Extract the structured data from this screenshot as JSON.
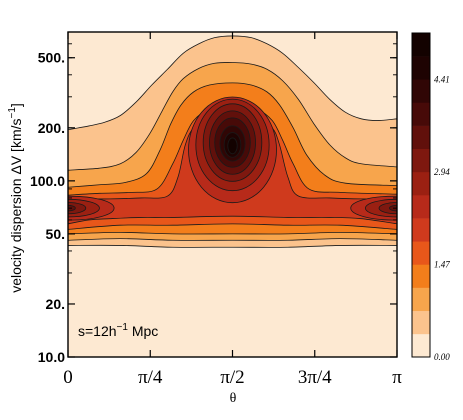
{
  "chart_data": {
    "type": "contour",
    "xlabel": "θ",
    "ylabel": "velocity dispersion ΔV [km/s",
    "ylabel_sup": "−1",
    "ylabel_end": "]",
    "x_range": [
      0,
      3.14159
    ],
    "x_ticks": [
      {
        "value": 0,
        "label": "0"
      },
      {
        "value": 0.7854,
        "label": "π/4"
      },
      {
        "value": 1.5708,
        "label": "π/2"
      },
      {
        "value": 2.3562,
        "label": "3π/4"
      },
      {
        "value": 3.14159,
        "label": "π"
      }
    ],
    "y_scale": "log",
    "y_range": [
      10,
      700
    ],
    "y_ticks": [
      {
        "value": 10,
        "label": "10.0"
      },
      {
        "value": 20,
        "label": "20."
      },
      {
        "value": 50,
        "label": "50."
      },
      {
        "value": 100,
        "label": "100.0"
      },
      {
        "value": 200,
        "label": "200."
      },
      {
        "value": 500,
        "label": "500."
      }
    ],
    "annotation": {
      "main": "s=12h",
      "sup": "−1",
      "tail": " Mpc"
    },
    "colorbar": {
      "range": [
        0,
        5.15
      ],
      "ticks": [
        {
          "value": 0.0,
          "label": "0.00"
        },
        {
          "value": 1.47,
          "label": "1.47"
        },
        {
          "value": 2.94,
          "label": "2.94"
        },
        {
          "value": 4.41,
          "label": "4.41"
        }
      ],
      "colors": [
        "#fde9d2",
        "#fbc38d",
        "#f7a54c",
        "#f37e1b",
        "#e8571a",
        "#cf3a1d",
        "#b72a1a",
        "#9b2012",
        "#7e180f",
        "#61100b",
        "#470a08",
        "#300605",
        "#1e0302",
        "#130200"
      ]
    },
    "levels": [
      {
        "level": 1,
        "upper": [
          [
            0,
            195
          ],
          [
            0.2,
            205
          ],
          [
            0.35,
            215
          ],
          [
            0.5,
            235
          ],
          [
            0.65,
            280
          ],
          [
            0.8,
            350
          ],
          [
            0.95,
            430
          ],
          [
            1.1,
            530
          ],
          [
            1.25,
            600
          ],
          [
            1.4,
            650
          ],
          [
            1.5708,
            665
          ],
          [
            1.75,
            650
          ],
          [
            1.9,
            600
          ],
          [
            2.05,
            530
          ],
          [
            2.2,
            440
          ],
          [
            2.35,
            360
          ],
          [
            2.5,
            290
          ],
          [
            2.65,
            245
          ],
          [
            2.8,
            225
          ],
          [
            2.95,
            220
          ],
          [
            3.14159,
            225
          ]
        ],
        "lower": [
          [
            0,
            43
          ],
          [
            0.5,
            43
          ],
          [
            1.0,
            42
          ],
          [
            1.5708,
            42
          ],
          [
            2.1,
            42
          ],
          [
            2.6,
            43
          ],
          [
            3.14159,
            43
          ]
        ]
      },
      {
        "level": 2,
        "upper": [
          [
            0,
            115
          ],
          [
            0.3,
            118
          ],
          [
            0.5,
            125
          ],
          [
            0.65,
            145
          ],
          [
            0.78,
            185
          ],
          [
            0.9,
            250
          ],
          [
            1.0,
            320
          ],
          [
            1.1,
            380
          ],
          [
            1.25,
            435
          ],
          [
            1.4,
            465
          ],
          [
            1.5708,
            470
          ],
          [
            1.75,
            460
          ],
          [
            1.9,
            430
          ],
          [
            2.05,
            370
          ],
          [
            2.2,
            290
          ],
          [
            2.35,
            210
          ],
          [
            2.5,
            160
          ],
          [
            2.65,
            135
          ],
          [
            2.8,
            125
          ],
          [
            3.14159,
            120
          ]
        ],
        "lower": [
          [
            0,
            46
          ],
          [
            0.5,
            47
          ],
          [
            1.0,
            46
          ],
          [
            1.5708,
            46
          ],
          [
            2.1,
            46
          ],
          [
            2.6,
            47
          ],
          [
            3.14159,
            46
          ]
        ]
      },
      {
        "level": 3,
        "upper": [
          [
            0,
            92
          ],
          [
            0.3,
            95
          ],
          [
            0.55,
            98
          ],
          [
            0.75,
            110
          ],
          [
            0.88,
            150
          ],
          [
            0.98,
            210
          ],
          [
            1.08,
            270
          ],
          [
            1.2,
            320
          ],
          [
            1.35,
            350
          ],
          [
            1.5708,
            360
          ],
          [
            1.75,
            350
          ],
          [
            1.9,
            320
          ],
          [
            2.02,
            270
          ],
          [
            2.15,
            200
          ],
          [
            2.28,
            140
          ],
          [
            2.45,
            108
          ],
          [
            2.65,
            97
          ],
          [
            3.14159,
            94
          ]
        ],
        "lower": [
          [
            0,
            50
          ],
          [
            0.5,
            51
          ],
          [
            1.0,
            50
          ],
          [
            1.5708,
            50
          ],
          [
            2.1,
            50
          ],
          [
            2.6,
            51
          ],
          [
            3.14159,
            50
          ]
        ]
      },
      {
        "level": 4,
        "upper": [
          [
            0,
            83
          ],
          [
            0.3,
            85
          ],
          [
            0.6,
            86
          ],
          [
            0.85,
            90
          ],
          [
            1.0,
            125
          ],
          [
            1.1,
            170
          ],
          [
            1.2,
            220
          ],
          [
            1.35,
            255
          ],
          [
            1.5708,
            265
          ],
          [
            1.8,
            255
          ],
          [
            1.95,
            220
          ],
          [
            2.05,
            170
          ],
          [
            2.15,
            125
          ],
          [
            2.3,
            90
          ],
          [
            2.6,
            86
          ],
          [
            3.14159,
            84
          ]
        ],
        "lower": [
          [
            0,
            53
          ],
          [
            0.5,
            56
          ],
          [
            1.0,
            56
          ],
          [
            1.5708,
            57
          ],
          [
            2.1,
            56
          ],
          [
            2.6,
            56
          ],
          [
            3.14159,
            53
          ]
        ]
      },
      {
        "level": 5,
        "upper": [
          [
            0,
            78
          ],
          [
            0.2,
            79
          ],
          [
            0.4,
            79
          ],
          [
            0.7,
            80
          ],
          [
            0.95,
            82
          ],
          [
            1.05,
            105
          ],
          [
            1.12,
            160
          ],
          [
            1.2,
            200
          ],
          [
            1.35,
            225
          ],
          [
            1.5708,
            232
          ],
          [
            1.8,
            225
          ],
          [
            1.95,
            200
          ],
          [
            2.02,
            160
          ],
          [
            2.1,
            105
          ],
          [
            2.2,
            82
          ],
          [
            2.5,
            80
          ],
          [
            2.8,
            79
          ],
          [
            3.14159,
            79
          ]
        ],
        "lower": [
          [
            0,
            57
          ],
          [
            0.2,
            60
          ],
          [
            0.4,
            61
          ],
          [
            0.7,
            62
          ],
          [
            1.0,
            62
          ],
          [
            1.5708,
            63
          ],
          [
            2.1,
            62
          ],
          [
            2.5,
            62
          ],
          [
            2.8,
            61
          ],
          [
            3.14159,
            57
          ]
        ]
      },
      {
        "level": 6,
        "blobs": [
          {
            "cx": 0.02,
            "cy": 70,
            "rx": 0.42,
            "ry": 0.068
          },
          {
            "cx": 3.12,
            "cy": 70,
            "rx": 0.42,
            "ry": 0.068
          },
          {
            "cx": 1.5708,
            "cy": 150,
            "rx": 0.42,
            "ry": 0.3
          }
        ]
      },
      {
        "level": 7,
        "blobs": [
          {
            "cx": 0.0,
            "cy": 70,
            "rx": 0.3,
            "ry": 0.05
          },
          {
            "cx": 3.14,
            "cy": 70,
            "rx": 0.3,
            "ry": 0.05
          },
          {
            "cx": 1.5708,
            "cy": 160,
            "rx": 0.35,
            "ry": 0.26
          }
        ]
      },
      {
        "level": 8,
        "blobs": [
          {
            "cx": 0.0,
            "cy": 70,
            "rx": 0.17,
            "ry": 0.032
          },
          {
            "cx": 3.14,
            "cy": 70,
            "rx": 0.17,
            "ry": 0.032
          },
          {
            "cx": 1.5708,
            "cy": 165,
            "rx": 0.28,
            "ry": 0.22
          }
        ]
      },
      {
        "level": 9,
        "blobs": [
          {
            "cx": 0.0,
            "cy": 70,
            "rx": 0.07,
            "ry": 0.016
          },
          {
            "cx": 3.14,
            "cy": 70,
            "rx": 0.07,
            "ry": 0.016
          },
          {
            "cx": 1.5708,
            "cy": 165,
            "rx": 0.22,
            "ry": 0.18
          }
        ]
      },
      {
        "level": 10,
        "blobs": [
          {
            "cx": 1.5708,
            "cy": 165,
            "rx": 0.17,
            "ry": 0.14
          }
        ]
      },
      {
        "level": 11,
        "blobs": [
          {
            "cx": 1.5708,
            "cy": 163,
            "rx": 0.12,
            "ry": 0.1
          }
        ]
      },
      {
        "level": 12,
        "blobs": [
          {
            "cx": 1.5708,
            "cy": 160,
            "rx": 0.08,
            "ry": 0.07
          }
        ]
      },
      {
        "level": 13,
        "blobs": [
          {
            "cx": 1.5708,
            "cy": 158,
            "rx": 0.045,
            "ry": 0.045
          }
        ]
      }
    ]
  }
}
